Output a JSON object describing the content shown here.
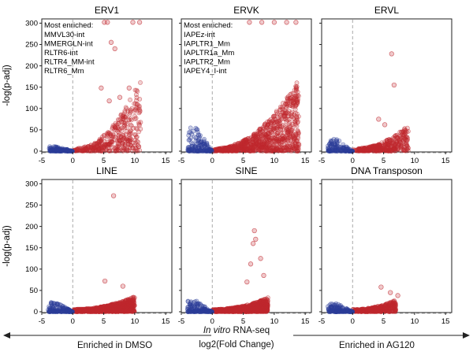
{
  "figure": {
    "ylabel": "-log(p-adj)",
    "xlabel_italic": "In vitro",
    "xlabel_rest": " RNA-seq",
    "xlabel_line2": "log2(Fold Change)",
    "left_arrow_label": "Enriched in DMSO",
    "right_arrow_label": "Enriched in AG120",
    "colors": {
      "depleted": "#2b3d99",
      "enriched": "#c0282f",
      "guide": "#aaaaaa"
    }
  },
  "chart_data": [
    {
      "type": "scatter",
      "title": "ERV1",
      "xlim": [
        -5,
        16
      ],
      "ylim": [
        0,
        310
      ],
      "xticks": [
        -5,
        0,
        5,
        10,
        15
      ],
      "yticks": [
        0,
        50,
        100,
        150,
        200,
        250,
        300
      ],
      "annotation_title": "Most enriched:",
      "annotations": [
        "MMVL30-int",
        "MMERGLN-int",
        "RLTR6-int",
        "RLTR4_MM-int",
        "RLTR6_Mm"
      ],
      "enriched_points": {
        "x_range": [
          0,
          11
        ],
        "max_y": 300,
        "cluster_density": "medium",
        "outliers": [
          [
            5.1,
            302
          ],
          [
            5.6,
            302
          ],
          [
            9.7,
            302
          ],
          [
            10.8,
            302
          ],
          [
            6.2,
            255
          ],
          [
            6.8,
            240
          ],
          [
            4.6,
            148
          ],
          [
            9.1,
            148
          ],
          [
            7.6,
            126
          ],
          [
            5.9,
            118
          ]
        ]
      },
      "depleted_points": {
        "x_range": [
          -3.8,
          0
        ],
        "max_y": 12
      }
    },
    {
      "type": "scatter",
      "title": "ERVK",
      "xlim": [
        -5,
        16
      ],
      "ylim": [
        0,
        310
      ],
      "xticks": [
        -5,
        0,
        5,
        10,
        15
      ],
      "yticks": [
        0,
        50,
        100,
        150,
        200,
        250,
        300
      ],
      "annotation_title": "Most enriched:",
      "annotations": [
        "IAPEz-int",
        "IAPLTR1_Mm",
        "IAPLTR1a_Mm",
        "IAPLTR2_Mm",
        "IAPEY4_I-int"
      ],
      "enriched_points": {
        "x_range": [
          0,
          14
        ],
        "max_y": 300,
        "cluster_density": "high",
        "outliers": [
          [
            6,
            302
          ],
          [
            8,
            302
          ],
          [
            10,
            302
          ],
          [
            12,
            302
          ],
          [
            13.5,
            302
          ]
        ]
      },
      "depleted_points": {
        "x_range": [
          -4,
          0
        ],
        "max_y": 55
      }
    },
    {
      "type": "scatter",
      "title": "ERVL",
      "xlim": [
        -5,
        16
      ],
      "ylim": [
        0,
        310
      ],
      "xticks": [
        -5,
        0,
        5,
        10,
        15
      ],
      "yticks": [
        0,
        50,
        100,
        150,
        200,
        250,
        300
      ],
      "annotation_title": "",
      "annotations": [],
      "enriched_points": {
        "x_range": [
          0,
          9
        ],
        "max_y": 100,
        "cluster_density": "medium",
        "outliers": [
          [
            6.3,
            228
          ],
          [
            6.7,
            155
          ],
          [
            4.2,
            75
          ],
          [
            5.2,
            62
          ]
        ]
      },
      "depleted_points": {
        "x_range": [
          -4,
          0
        ],
        "max_y": 28
      }
    },
    {
      "type": "scatter",
      "title": "LINE",
      "xlim": [
        -5,
        16
      ],
      "ylim": [
        0,
        310
      ],
      "xticks": [
        -5,
        0,
        5,
        10,
        15
      ],
      "yticks": [
        0,
        50,
        100,
        150,
        200,
        250,
        300
      ],
      "annotation_title": "",
      "annotations": [],
      "enriched_points": {
        "x_range": [
          0,
          10
        ],
        "max_y": 55,
        "cluster_density": "high",
        "outliers": [
          [
            6.6,
            272
          ],
          [
            5.2,
            72
          ],
          [
            8.1,
            60
          ]
        ]
      },
      "depleted_points": {
        "x_range": [
          -4,
          0
        ],
        "max_y": 22
      }
    },
    {
      "type": "scatter",
      "title": "SINE",
      "xlim": [
        -5,
        16
      ],
      "ylim": [
        0,
        310
      ],
      "xticks": [
        -5,
        0,
        5,
        10,
        15
      ],
      "yticks": [
        0,
        50,
        100,
        150,
        200,
        250,
        300
      ],
      "annotation_title": "",
      "annotations": [],
      "enriched_points": {
        "x_range": [
          0,
          9
        ],
        "max_y": 50,
        "cluster_density": "high",
        "outliers": [
          [
            6.8,
            190
          ],
          [
            7.0,
            170
          ],
          [
            6.6,
            160
          ],
          [
            7.8,
            125
          ],
          [
            6.2,
            112
          ],
          [
            8.3,
            85
          ],
          [
            5.6,
            70
          ]
        ]
      },
      "depleted_points": {
        "x_range": [
          -4,
          0
        ],
        "max_y": 25
      }
    },
    {
      "type": "scatter",
      "title": "DNA Transposon",
      "xlim": [
        -5,
        16
      ],
      "ylim": [
        0,
        310
      ],
      "xticks": [
        -5,
        0,
        5,
        10,
        15
      ],
      "yticks": [
        0,
        50,
        100,
        150,
        200,
        250,
        300
      ],
      "annotation_title": "",
      "annotations": [],
      "enriched_points": {
        "x_range": [
          0,
          7
        ],
        "max_y": 40,
        "cluster_density": "medium",
        "outliers": [
          [
            4.6,
            58
          ],
          [
            6.1,
            45
          ],
          [
            7.3,
            38
          ]
        ]
      },
      "depleted_points": {
        "x_range": [
          -4,
          0
        ],
        "max_y": 20
      }
    }
  ]
}
